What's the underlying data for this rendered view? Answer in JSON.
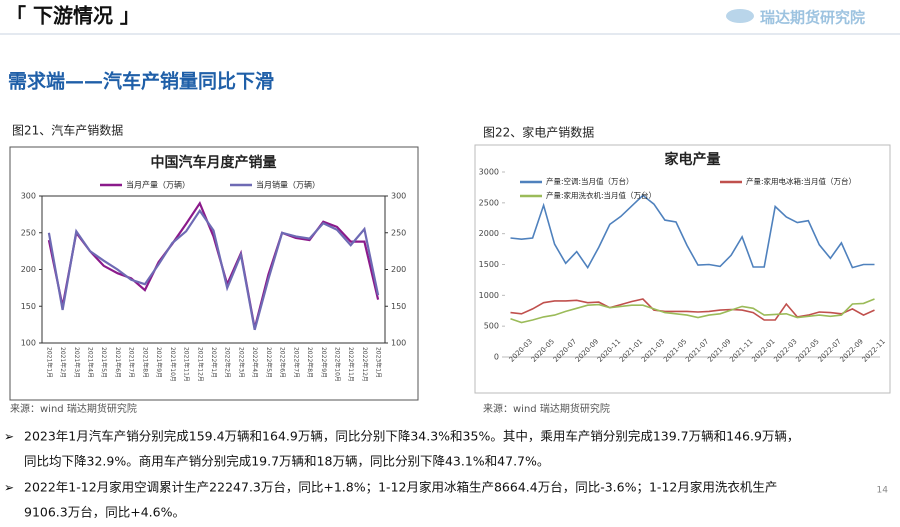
{
  "header": {
    "title": "「 下游情况 」",
    "logo": "瑞达期货研究院"
  },
  "heading": "需求端——汽车产销量同比下滑",
  "captions": [
    "图21、汽车产销数据",
    "图22、家电产销数据"
  ],
  "sources": [
    "来源：wind   瑞达期货研究院",
    "来源：wind   瑞达期货研究院"
  ],
  "bullets": [
    "2023年1月汽车产销分别完成159.4万辆和164.9万辆，同比分别下降34.3%和35%。其中，乘用车产销分别完成139.7万辆和146.9万辆，",
    "同比均下降32.9%。商用车产销分别完成19.7万辆和18万辆，同比分别下降43.1%和47.7%。",
    "2022年1-12月家用空调累计生产22247.3万台，同比+1.8%；1-12月家用冰箱生产8664.4万台，同比-3.6%；1-12月家用洗衣机生产",
    "9106.3万台，同比+4.6%。"
  ],
  "page_number": "14",
  "chart_data": [
    {
      "type": "line",
      "title": "中国汽车月度产销量",
      "categories": [
        "2021年1月",
        "2021年2月",
        "2021年3月",
        "2021年4月",
        "2021年5月",
        "2021年6月",
        "2021年7月",
        "2021年8月",
        "2021年9月",
        "2021年10月",
        "2021年11月",
        "2021年12月",
        "2022年1月",
        "2022年2月",
        "2022年3月",
        "2022年4月",
        "2022年5月",
        "2022年6月",
        "2022年7月",
        "2022年8月",
        "2022年9月",
        "2022年10月",
        "2022年11月",
        "2022年12月",
        "2023年1月"
      ],
      "series": [
        {
          "name": "当月产量（万辆）",
          "color": "#8b1a8b",
          "values": [
            240,
            150,
            250,
            225,
            205,
            195,
            188,
            172,
            210,
            235,
            262,
            290,
            245,
            180,
            222,
            120,
            193,
            250,
            243,
            240,
            265,
            258,
            238,
            238,
            159
          ]
        },
        {
          "name": "当月销量（万辆）",
          "color": "#6e6ab4",
          "values": [
            250,
            145,
            252,
            225,
            212,
            200,
            186,
            180,
            207,
            236,
            252,
            280,
            253,
            175,
            220,
            118,
            187,
            250,
            245,
            242,
            263,
            254,
            233,
            255,
            165
          ]
        }
      ],
      "ylim": [
        100,
        300
      ],
      "yticks": [
        100,
        150,
        200,
        250,
        300
      ],
      "y2lim": [
        100,
        300
      ],
      "y2ticks": [
        100,
        150,
        200,
        250,
        300
      ]
    },
    {
      "type": "line",
      "title": "家电产量",
      "categories": [
        "2020-03",
        null,
        "2020-05",
        null,
        "2020-07",
        null,
        "2020-09",
        null,
        "2020-11",
        null,
        "2021-01",
        null,
        "2021-03",
        null,
        "2021-05",
        null,
        "2021-07",
        null,
        "2021-09",
        null,
        "2021-11",
        null,
        "2022-01",
        null,
        "2022-03",
        null,
        "2022-05",
        null,
        "2022-07",
        null,
        "2022-09",
        null,
        "2022-11",
        null
      ],
      "series": [
        {
          "name": "产量:空调:当月值（万台）",
          "color": "#4f81bd",
          "values": [
            1930,
            1910,
            1930,
            2460,
            1830,
            1520,
            1710,
            1450,
            1780,
            2150,
            2280,
            2450,
            2620,
            2480,
            2220,
            2190,
            1810,
            1490,
            1500,
            1470,
            1650,
            1950,
            1460,
            1460,
            2440,
            2270,
            2180,
            2210,
            1820,
            1600,
            1850,
            1450,
            1500,
            1500
          ]
        },
        {
          "name": "产量:家用电冰箱:当月值（万台）",
          "color": "#c0504d",
          "values": [
            720,
            700,
            780,
            880,
            910,
            910,
            920,
            880,
            890,
            800,
            850,
            900,
            940,
            760,
            740,
            740,
            740,
            730,
            740,
            760,
            770,
            760,
            720,
            600,
            600,
            860,
            650,
            680,
            730,
            720,
            700,
            780,
            680,
            760
          ]
        },
        {
          "name": "产量:家用洗衣机:当月值（万台）",
          "color": "#9bbb59",
          "values": [
            620,
            560,
            600,
            650,
            680,
            740,
            790,
            840,
            850,
            800,
            820,
            840,
            840,
            780,
            720,
            700,
            680,
            640,
            680,
            700,
            760,
            820,
            790,
            680,
            690,
            700,
            640,
            660,
            680,
            660,
            680,
            860,
            870,
            940
          ]
        }
      ],
      "ylim": [
        0,
        3000
      ],
      "yticks": [
        0,
        500,
        1000,
        1500,
        2000,
        2500,
        3000
      ]
    }
  ]
}
